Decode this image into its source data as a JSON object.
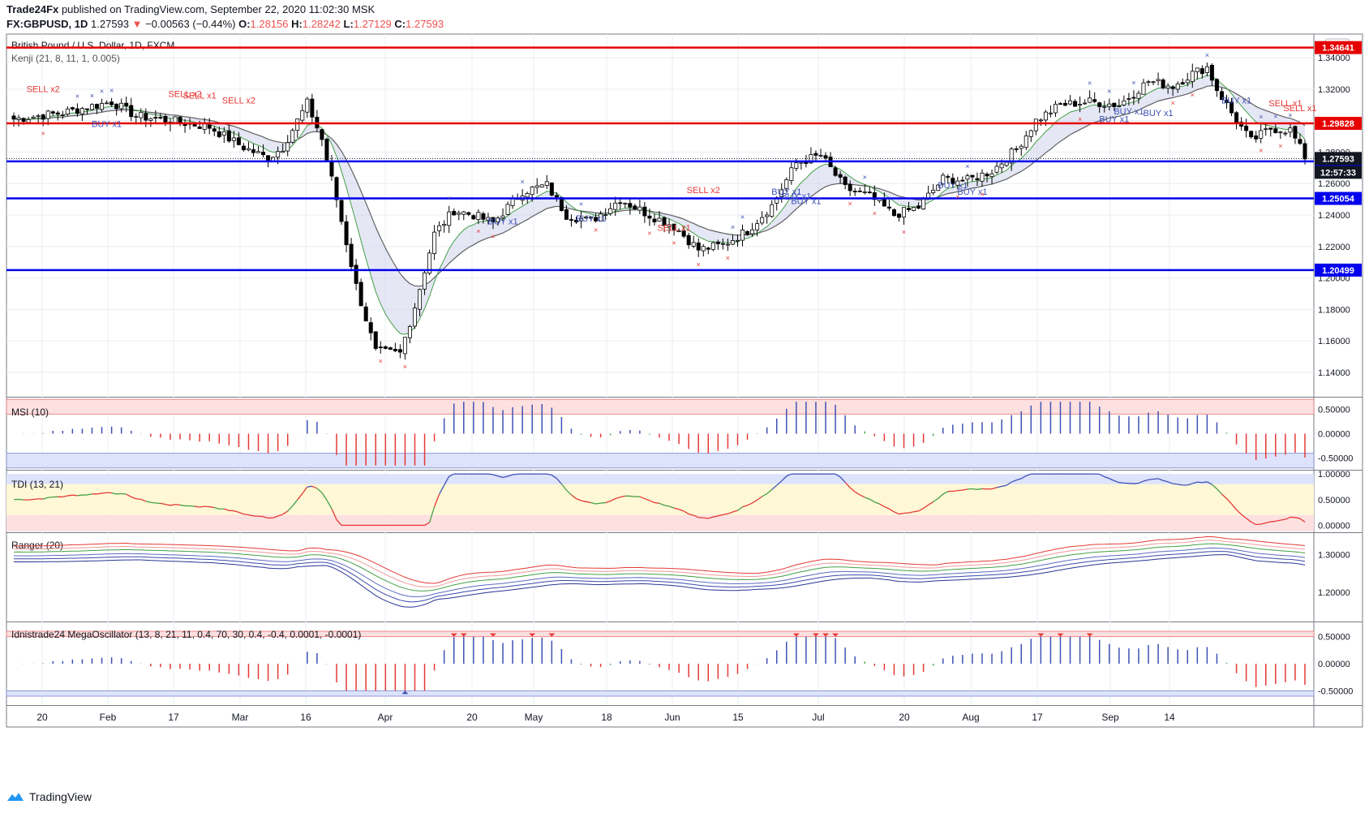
{
  "header": {
    "publisher": "Trade24Fx",
    "published_text": "published on TradingView.com, September 22, 2020 11:02:30 MSK",
    "symbol": "FX:GBPUSD, 1D",
    "last": "1.27593",
    "change": "−0.00563 (−0.44%)",
    "o_label": "O:",
    "o": "1.28156",
    "h_label": "H:",
    "h": "1.28242",
    "l_label": "L:",
    "l": "1.27129",
    "c_label": "C:",
    "c": "1.27593"
  },
  "footer": {
    "brand": "TradingView"
  },
  "colors": {
    "up": "#ffffff",
    "down": "#000000",
    "resistance": "#e60000",
    "support": "#0000ee",
    "sell": "#e53935",
    "buy": "#3f51b5",
    "grid": "#e9edf2"
  },
  "chart_data": [
    {
      "type": "candlestick",
      "title": "British Pound / U.S. Dollar, 1D, FXCM",
      "subtitle": "Kenji (21, 8, 11, 1, 0.005)",
      "currency": "USD",
      "ylim": [
        1.125,
        1.355
      ],
      "yticks": [
        "1.34000",
        "1.32000",
        "1.30000",
        "1.28000",
        "1.26000",
        "1.24000",
        "1.22000",
        "1.20000",
        "1.18000",
        "1.16000",
        "1.14000"
      ],
      "xticks": [
        "20",
        "Feb",
        "17",
        "Mar",
        "16",
        "Apr",
        "20",
        "May",
        "18",
        "Jun",
        "15",
        "Jul",
        "20",
        "Aug",
        "17",
        "Sep",
        "14"
      ],
      "price_anchors": [
        [
          0,
          1.301
        ],
        [
          10,
          1.305
        ],
        [
          20,
          1.312
        ],
        [
          25,
          1.303
        ],
        [
          32,
          1.3
        ],
        [
          40,
          1.296
        ],
        [
          47,
          1.283
        ],
        [
          52,
          1.276
        ],
        [
          55,
          1.283
        ],
        [
          58,
          1.3
        ],
        [
          60,
          1.311
        ],
        [
          63,
          1.288
        ],
        [
          66,
          1.25
        ],
        [
          70,
          1.195
        ],
        [
          74,
          1.153
        ],
        [
          79,
          1.152
        ],
        [
          82,
          1.182
        ],
        [
          86,
          1.228
        ],
        [
          90,
          1.243
        ],
        [
          94,
          1.24
        ],
        [
          98,
          1.235
        ],
        [
          104,
          1.255
        ],
        [
          109,
          1.259
        ],
        [
          113,
          1.24
        ],
        [
          118,
          1.236
        ],
        [
          124,
          1.25
        ],
        [
          130,
          1.24
        ],
        [
          135,
          1.233
        ],
        [
          140,
          1.218
        ],
        [
          145,
          1.221
        ],
        [
          150,
          1.23
        ],
        [
          155,
          1.246
        ],
        [
          160,
          1.273
        ],
        [
          165,
          1.278
        ],
        [
          170,
          1.257
        ],
        [
          175,
          1.252
        ],
        [
          180,
          1.24
        ],
        [
          185,
          1.245
        ],
        [
          190,
          1.263
        ],
        [
          195,
          1.262
        ],
        [
          200,
          1.268
        ],
        [
          205,
          1.282
        ],
        [
          209,
          1.3
        ],
        [
          214,
          1.31
        ],
        [
          220,
          1.312
        ],
        [
          226,
          1.31
        ],
        [
          232,
          1.325
        ],
        [
          237,
          1.322
        ],
        [
          241,
          1.33
        ],
        [
          244,
          1.334
        ],
        [
          246,
          1.32
        ],
        [
          250,
          1.3
        ],
        [
          253,
          1.287
        ],
        [
          257,
          1.295
        ],
        [
          261,
          1.294
        ],
        [
          264,
          1.277
        ]
      ],
      "levels": [
        {
          "label": "1.34641",
          "value": 1.34641,
          "kind": "resistance"
        },
        {
          "label": "1.29828",
          "value": 1.29828,
          "kind": "resistance"
        },
        {
          "label": "1.27413",
          "value": 1.27413,
          "kind": "support"
        },
        {
          "label": "1.25054",
          "value": 1.25054,
          "kind": "support"
        },
        {
          "label": "1.20499",
          "value": 1.20499,
          "kind": "support"
        }
      ],
      "last_price": "1.27593",
      "countdown": "12:57:33",
      "signals": [
        {
          "text": "SELL x2",
          "kind": "sell",
          "bar": 6,
          "price": 1.318
        },
        {
          "text": "SELL x2",
          "kind": "sell",
          "bar": 35,
          "price": 1.315
        },
        {
          "text": "SELL x1",
          "kind": "sell",
          "bar": 38,
          "price": 1.314
        },
        {
          "text": "SELL x2",
          "kind": "sell",
          "bar": 46,
          "price": 1.311
        },
        {
          "text": "BUY x1",
          "kind": "buy",
          "bar": 19,
          "price": 1.296
        },
        {
          "text": "BUY x1",
          "kind": "buy",
          "bar": 100,
          "price": 1.234
        },
        {
          "text": "BUY x1",
          "kind": "buy",
          "bar": 118,
          "price": 1.236
        },
        {
          "text": "SELL x2",
          "kind": "sell",
          "bar": 141,
          "price": 1.254
        },
        {
          "text": "SELL x1",
          "kind": "sell",
          "bar": 135,
          "price": 1.23
        },
        {
          "text": "BUY x1",
          "kind": "buy",
          "bar": 158,
          "price": 1.253
        },
        {
          "text": "BUY x1",
          "kind": "buy",
          "bar": 160,
          "price": 1.25
        },
        {
          "text": "BUY x1",
          "kind": "buy",
          "bar": 162,
          "price": 1.247
        },
        {
          "text": "BUY x1",
          "kind": "buy",
          "bar": 192,
          "price": 1.257
        },
        {
          "text": "BUY x1",
          "kind": "buy",
          "bar": 196,
          "price": 1.253
        },
        {
          "text": "BUY x1",
          "kind": "buy",
          "bar": 225,
          "price": 1.299
        },
        {
          "text": "BUY x1",
          "kind": "buy",
          "bar": 228,
          "price": 1.304
        },
        {
          "text": "BUY x1",
          "kind": "buy",
          "bar": 234,
          "price": 1.303
        },
        {
          "text": "BUY x1",
          "kind": "buy",
          "bar": 250,
          "price": 1.311
        },
        {
          "text": "SELL x1",
          "kind": "sell",
          "bar": 260,
          "price": 1.309
        },
        {
          "text": "SELL x1",
          "kind": "sell",
          "bar": 263,
          "price": 1.306
        }
      ]
    },
    {
      "type": "bar",
      "title": "MSI (10)",
      "yticks": [
        "0.50000",
        "0.00000",
        "-0.50000"
      ],
      "ylim": [
        -0.72,
        0.72
      ],
      "bands": [
        0.4,
        0.7,
        -0.4,
        -0.7
      ]
    },
    {
      "type": "line",
      "title": "TDI (13, 21)",
      "yticks": [
        "1.00000",
        "0.50000",
        "0.00000"
      ],
      "ylim": [
        -0.12,
        1.05
      ],
      "bands": [
        0.2,
        0.8
      ]
    },
    {
      "type": "line",
      "title": "Ranger (20)",
      "yticks": [
        "1.30000",
        "1.20000"
      ],
      "ylim": [
        1.125,
        1.355
      ]
    },
    {
      "type": "bar",
      "title": "Idnistrade24 MegaOscillator (13, 8, 21, 11, 0.4, 70, 30, 0.4, -0.4, 0.0001, -0.0001)",
      "yticks": [
        "0.50000",
        "0.00000",
        "-0.50000"
      ],
      "ylim": [
        -0.75,
        0.75
      ],
      "bands": [
        0.5,
        0.6,
        -0.5,
        -0.6
      ]
    }
  ]
}
